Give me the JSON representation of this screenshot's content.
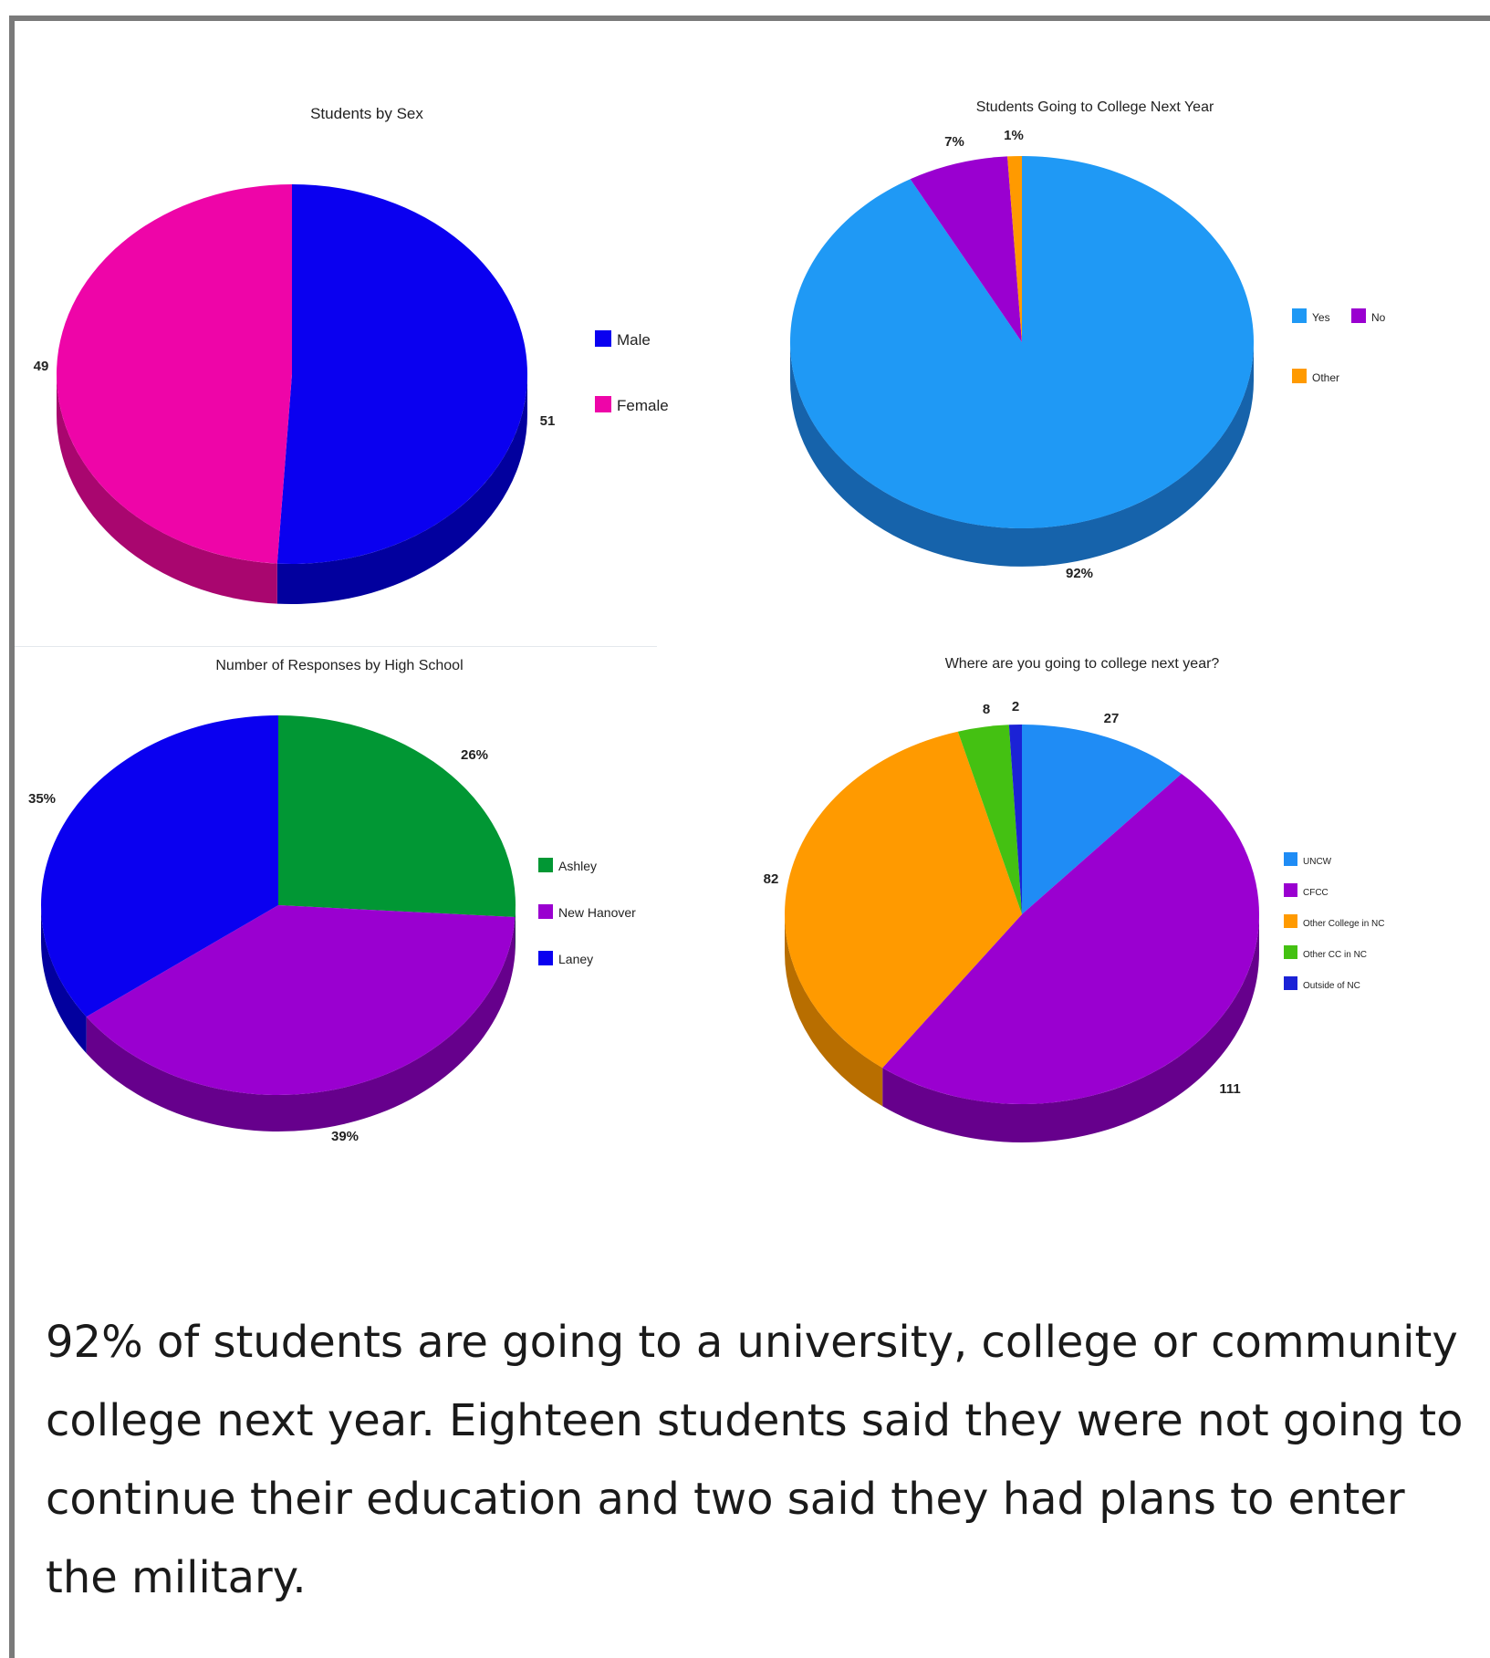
{
  "chart_data": [
    {
      "type": "pie",
      "title": "Students by Sex",
      "slices": [
        {
          "label": "Male",
          "value": 51,
          "data_label": "51",
          "color": "#0a00f0",
          "side": "#02009e"
        },
        {
          "label": "Female",
          "value": 49,
          "data_label": "49",
          "color": "#ee05a8",
          "side": "#a9066f"
        }
      ],
      "legend_position": "right"
    },
    {
      "type": "pie",
      "title": "Students Going to College Next Year",
      "slices": [
        {
          "label": "Yes",
          "value": 92,
          "data_label": "92%",
          "color": "#1f99f5",
          "side": "#1663ab"
        },
        {
          "label": "No",
          "value": 7,
          "data_label": "7%",
          "color": "#9a00d0",
          "side": "#66008c"
        },
        {
          "label": "Other",
          "value": 1,
          "data_label": "1%",
          "color": "#ff9a00",
          "side": "#b86e00"
        }
      ],
      "legend_position": "right"
    },
    {
      "type": "pie",
      "title": "Number of Responses by High School",
      "slices": [
        {
          "label": "Ashley",
          "value": 26,
          "data_label": "26%",
          "color": "#019734",
          "side": "#016526"
        },
        {
          "label": "New Hanover",
          "value": 39,
          "data_label": "39%",
          "color": "#9a00d0",
          "side": "#66008c"
        },
        {
          "label": "Laney",
          "value": 35,
          "data_label": "35%",
          "color": "#0a00f0",
          "side": "#02009e"
        }
      ],
      "legend_position": "right"
    },
    {
      "type": "pie",
      "title": "Where are you going to college next year?",
      "slices": [
        {
          "label": "UNCW",
          "value": 27,
          "data_label": "27",
          "color": "#1f8cf5",
          "side": "#1663ab"
        },
        {
          "label": "CFCC",
          "value": 111,
          "data_label": "111",
          "color": "#9a00d0",
          "side": "#66008c"
        },
        {
          "label": "Other College in NC",
          "value": 82,
          "data_label": "82",
          "color": "#ff9a00",
          "side": "#b86e00"
        },
        {
          "label": "Other CC in NC",
          "value": 8,
          "data_label": "8",
          "color": "#44c112",
          "side": "#2e8a0b"
        },
        {
          "label": "Outside of NC",
          "value": 2,
          "data_label": "2",
          "color": "#1b22d6",
          "side": "#11168e"
        }
      ],
      "legend_position": "right"
    }
  ],
  "caption": {
    "lines": [
      "92% of students are  going to a university, college or community",
      "college next year.  Eighteen students said they were not going to",
      "continue their education and two said they had plans to enter",
      "the military."
    ]
  }
}
